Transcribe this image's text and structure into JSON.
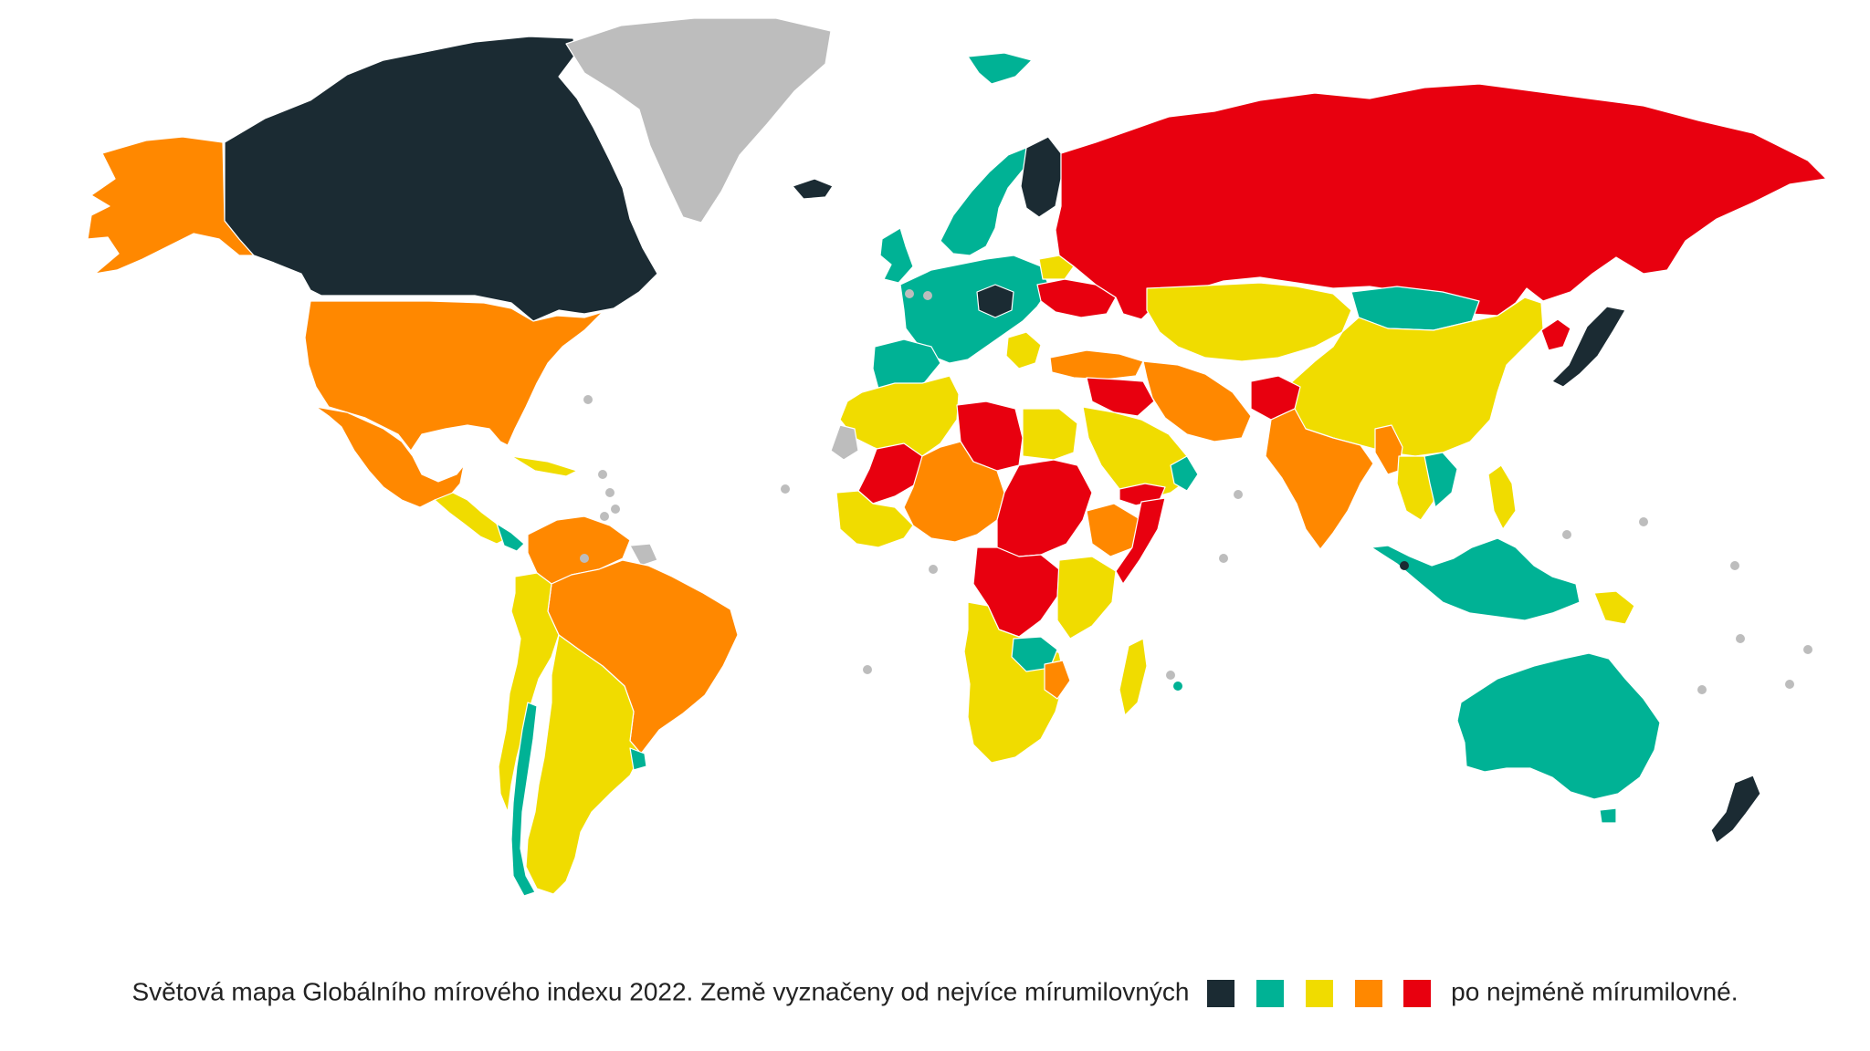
{
  "caption": {
    "text_before": "Světová mapa Globálního mírového indexu 2022. Země vyznačeny od nejvíce mírumilovných",
    "text_after": "po nejméně mírumilovné."
  },
  "legend": {
    "colors": [
      "#1b2b33",
      "#00b295",
      "#f0dc00",
      "#ff8800",
      "#e8000f"
    ]
  },
  "colors": {
    "no_data": "#bdbdbd",
    "background": "#ffffff"
  }
}
